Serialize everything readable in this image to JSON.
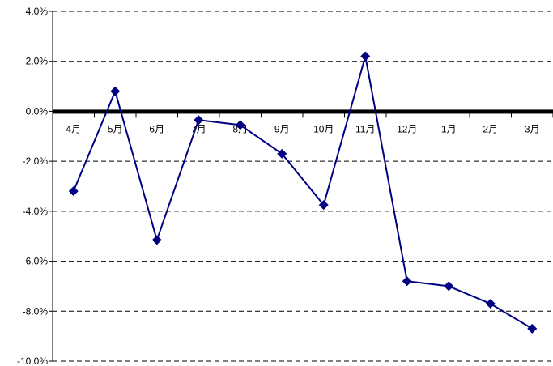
{
  "chart_data": {
    "type": "line",
    "title": "",
    "xlabel": "",
    "ylabel": "",
    "categories": [
      "4月",
      "5月",
      "6月",
      "7月",
      "8月",
      "9月",
      "10月",
      "11月",
      "12月",
      "1月",
      "2月",
      "3月"
    ],
    "series": [
      {
        "values": [
          -3.2,
          0.8,
          -5.15,
          -0.35,
          -0.55,
          -1.7,
          -3.75,
          2.2,
          -6.8,
          -7.0,
          -7.7,
          -8.7
        ],
        "color": "#000080",
        "marker": "diamond"
      }
    ],
    "ylim": [
      -10,
      4
    ],
    "yticks": [
      4,
      2,
      0,
      -2,
      -4,
      -6,
      -8,
      -10
    ],
    "ytick_labels": [
      "4.0%",
      "2.0%",
      "0.0%",
      "-2.0%",
      "-4.0%",
      "-6.0%",
      "-8.0%",
      "-10.0%"
    ],
    "grid": true,
    "grid_style": "dashed",
    "legend": "none",
    "zero_line_color": "#000000",
    "axis_color": "#000000"
  }
}
